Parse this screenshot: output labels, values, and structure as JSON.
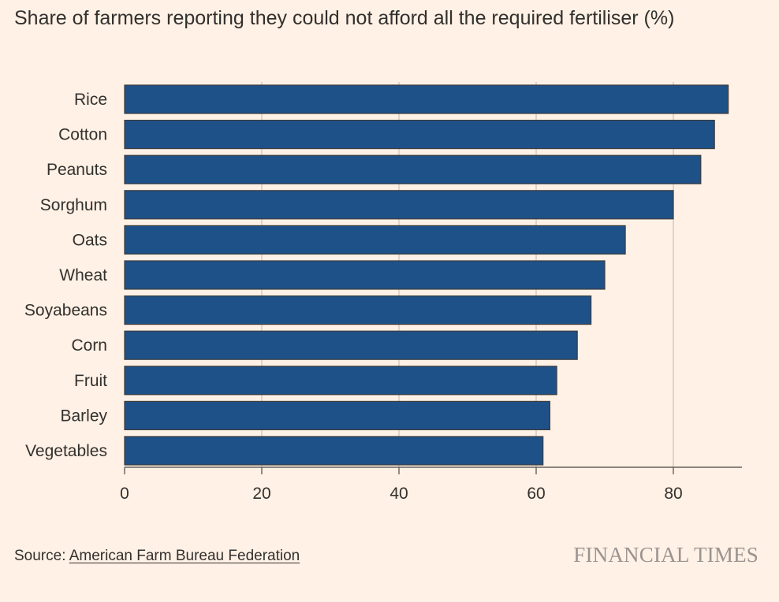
{
  "chart_data": {
    "type": "bar",
    "orientation": "horizontal",
    "title": "Share of farmers reporting they could not afford all the required fertiliser (%)",
    "categories": [
      "Rice",
      "Cotton",
      "Peanuts",
      "Sorghum",
      "Oats",
      "Wheat",
      "Soyabeans",
      "Corn",
      "Fruit",
      "Barley",
      "Vegetables"
    ],
    "values": [
      88,
      86,
      84,
      80,
      73,
      70,
      68,
      66,
      63,
      62,
      61
    ],
    "xlim": [
      0,
      90
    ],
    "xticks": [
      0,
      20,
      40,
      60,
      80
    ],
    "xlabel": "",
    "ylabel": "",
    "grid": true,
    "bar_color": "#1f5189",
    "grid_color": "#ccc1b7",
    "axis_color": "#66605c"
  },
  "footer": {
    "source_label": "Source:",
    "source_link": "American Farm Bureau Federation",
    "brand": "FINANCIAL TIMES"
  }
}
